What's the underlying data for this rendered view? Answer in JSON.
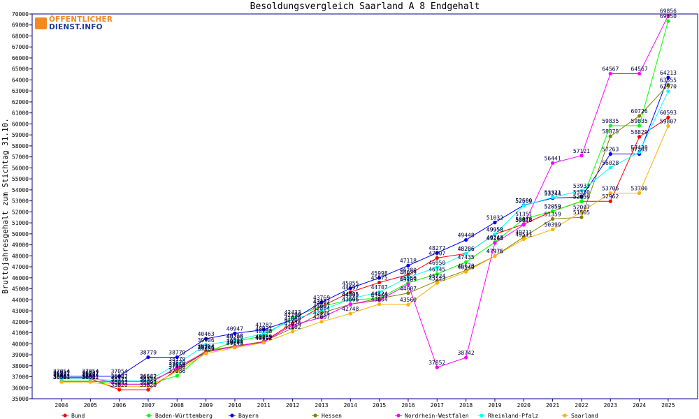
{
  "logo": {
    "line1": "ÖFFENTLICHER",
    "line2": "DIENST.INFO"
  },
  "chart_data": {
    "type": "line",
    "title": "Besoldungsvergleich Saarland A 8 Endgehalt",
    "xlabel": "",
    "ylabel": "Bruttojahresgehalt zum Stichtag 31.10.",
    "x": [
      "2004",
      "2005",
      "2006",
      "2007",
      "2008",
      "2009",
      "2010",
      "2011",
      "2012",
      "2013",
      "2014",
      "2015",
      "2016",
      "2017",
      "2018",
      "2019",
      "2020",
      "2021",
      "2022",
      "2023",
      "2024",
      "2025"
    ],
    "ylim": [
      35000,
      70000
    ],
    "ytick_step": 1000,
    "grid": false,
    "legend": "bottom",
    "series": [
      {
        "name": "Bund",
        "color": "#ff0000",
        "values": [
          36827,
          36827,
          35820,
          35820,
          37658,
          39246,
          39781,
          40203,
          41868,
          43397,
          44697,
          45575,
          46280,
          47807,
          48206,
          49958,
          50878,
          52059,
          52959,
          52962,
          58829,
          60593
        ],
        "labels": [
          "36827",
          "36827",
          "35820",
          "35820",
          "37658",
          "39246",
          "39781",
          "40203",
          "41868",
          "43397",
          "44697",
          "45575",
          "46280",
          "47807",
          "48206",
          "49958",
          "50878",
          "52059",
          "52959",
          "52962",
          "58829",
          "60593"
        ]
      },
      {
        "name": "Baden-Württemberg",
        "color": "#00ff00",
        "values": [
          36621,
          36621,
          36321,
          36321,
          37086,
          39246,
          40206,
          40708,
          42433,
          43402,
          44005,
          44124,
          45550,
          46345,
          47435,
          49243,
          51351,
          52053,
          52959,
          59835,
          59835,
          69350
        ],
        "labels": [
          "36621",
          "36621",
          "36321",
          "36321",
          "37086",
          "39246",
          "40206",
          "40708",
          "42433",
          "43402",
          "44005",
          "44124",
          "45550",
          "46345",
          "47435",
          "49243",
          "51351",
          "52053",
          "52959",
          "59835",
          "59835",
          "69350"
        ]
      },
      {
        "name": "Bayern",
        "color": "#0000ff",
        "values": [
          37054,
          37054,
          37054,
          38779,
          38779,
          40463,
          40947,
          41282,
          42199,
          43769,
          45055,
          45998,
          47118,
          48277,
          49448,
          51032,
          52600,
          53244,
          53350,
          57263,
          57263,
          64213
        ],
        "labels": [
          "37054",
          "37054",
          "37054",
          "38779",
          "38779",
          "40463",
          "40947",
          "41282",
          "42199",
          "43769",
          "45055",
          "45998",
          "47118",
          "48277",
          "49448",
          "51032",
          "52600",
          "53244",
          "53350",
          "57263",
          "57263",
          "64213"
        ]
      },
      {
        "name": "Hessen",
        "color": "#808000",
        "values": [
          36567,
          36567,
          36567,
          36567,
          37650,
          39364,
          39781,
          40209,
          41426,
          42804,
          43595,
          44124,
          44607,
          45724,
          46670,
          47976,
          49711,
          51359,
          51505,
          58875,
          60726,
          63555
        ],
        "labels": [
          "36567",
          "36567",
          "36567",
          "36567",
          "37650",
          "39364",
          "39781",
          "40209",
          "41426",
          "42804",
          "43595",
          "44124",
          "44607",
          "45724",
          "46670",
          "47976",
          "49711",
          "51359",
          "51505",
          "58875",
          "60726",
          "63555"
        ]
      },
      {
        "name": "Nordrhein-Westfalen",
        "color": "#ff00ff",
        "values": [
          36937,
          36937,
          36321,
          36321,
          37870,
          39246,
          39748,
          40152,
          41702,
          42394,
          43606,
          43960,
          45409,
          37852,
          38742,
          49168,
          50818,
          56441,
          57121,
          64567,
          64567,
          69856
        ],
        "labels": [
          "36937",
          "36937",
          "36321",
          "36321",
          "37870",
          "39246",
          "39748",
          "40152",
          "41702",
          "42394",
          "43606",
          "43960",
          "45409",
          "37852",
          "38742",
          "49168",
          "50818",
          "56441",
          "57121",
          "64567",
          "64567",
          "69856"
        ]
      },
      {
        "name": "Rheinland-Pfalz",
        "color": "#00ffff",
        "values": [
          36807,
          36807,
          36632,
          36632,
          38179,
          39906,
          40310,
          40931,
          42199,
          43007,
          44095,
          44707,
          46039,
          46950,
          48206,
          49958,
          52569,
          53321,
          53933,
          56028,
          57430,
          62970
        ],
        "labels": [
          "36807",
          "36807",
          "36632",
          "36632",
          "38179",
          "39906",
          "40310",
          "40931",
          "42199",
          "43007",
          "44095",
          "44707",
          "46039",
          "46950",
          "48206",
          "49958",
          "52569",
          "53321",
          "53933",
          "56028",
          "57430",
          "62970"
        ]
      },
      {
        "name": "Saarland",
        "color": "#ffb000",
        "values": [
          36521,
          36521,
          36093,
          36093,
          37486,
          39109,
          39645,
          40092,
          41102,
          42007,
          42748,
          43604,
          43560,
          45523,
          46540,
          47975,
          49511,
          50399,
          52007,
          53706,
          53706,
          59807
        ],
        "labels": [
          "36521",
          "36521",
          "36093",
          "36093",
          "37486",
          "39109",
          "39645",
          "40092",
          "41102",
          "42007",
          "42748",
          "43604",
          "43560",
          "45523",
          "46540",
          "47975",
          "49511",
          "50399",
          "52007",
          "53706",
          "53706",
          "59807"
        ]
      }
    ]
  }
}
